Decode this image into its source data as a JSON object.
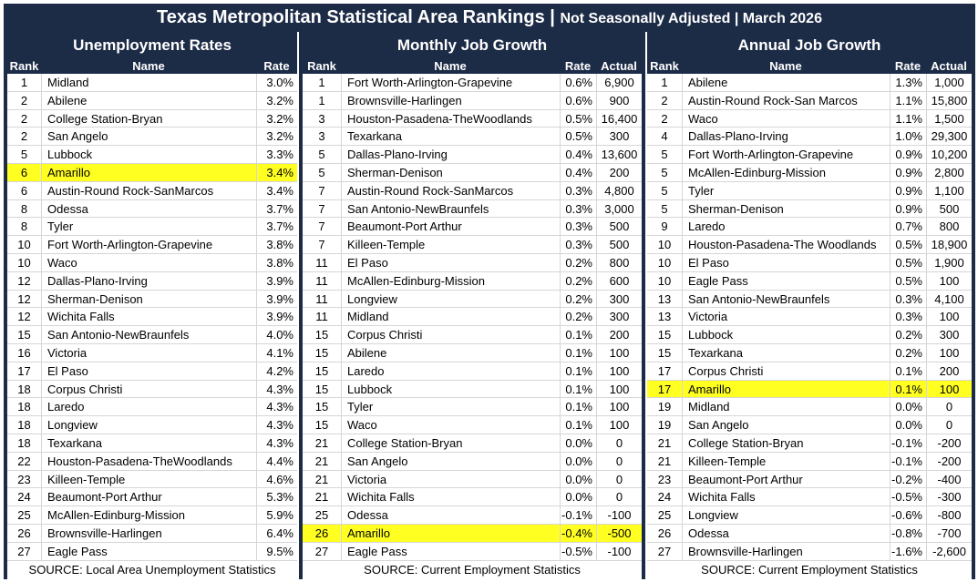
{
  "title": {
    "main": "Texas Metropolitan Statistical Area Rankings",
    "separator": " | ",
    "sub": "Not Seasonally Adjusted | March 2026"
  },
  "highlight_color": "#ffff22",
  "header_color": "#1c2b46",
  "sections": {
    "unemployment": {
      "title": "Unemployment Rates",
      "headers": {
        "rank": "Rank",
        "name": "Name",
        "rate": "Rate"
      },
      "source": "SOURCE: Local Area Unemployment Statistics",
      "rows": [
        {
          "rank": "1",
          "name": "Midland",
          "rate": "3.0%"
        },
        {
          "rank": "2",
          "name": "Abilene",
          "rate": "3.2%"
        },
        {
          "rank": "2",
          "name": "College Station-Bryan",
          "rate": "3.2%"
        },
        {
          "rank": "2",
          "name": "San Angelo",
          "rate": "3.2%"
        },
        {
          "rank": "5",
          "name": "Lubbock",
          "rate": "3.3%"
        },
        {
          "rank": "6",
          "name": "Amarillo",
          "rate": "3.4%",
          "highlight": true
        },
        {
          "rank": "6",
          "name": "Austin-Round Rock-SanMarcos",
          "rate": "3.4%"
        },
        {
          "rank": "8",
          "name": "Odessa",
          "rate": "3.7%"
        },
        {
          "rank": "8",
          "name": "Tyler",
          "rate": "3.7%"
        },
        {
          "rank": "10",
          "name": "Fort Worth-Arlington-Grapevine",
          "rate": "3.8%"
        },
        {
          "rank": "10",
          "name": "Waco",
          "rate": "3.8%"
        },
        {
          "rank": "12",
          "name": "Dallas-Plano-Irving",
          "rate": "3.9%"
        },
        {
          "rank": "12",
          "name": "Sherman-Denison",
          "rate": "3.9%"
        },
        {
          "rank": "12",
          "name": "Wichita Falls",
          "rate": "3.9%"
        },
        {
          "rank": "15",
          "name": "San Antonio-NewBraunfels",
          "rate": "4.0%"
        },
        {
          "rank": "16",
          "name": "Victoria",
          "rate": "4.1%"
        },
        {
          "rank": "17",
          "name": "El Paso",
          "rate": "4.2%"
        },
        {
          "rank": "18",
          "name": "Corpus Christi",
          "rate": "4.3%"
        },
        {
          "rank": "18",
          "name": "Laredo",
          "rate": "4.3%"
        },
        {
          "rank": "18",
          "name": "Longview",
          "rate": "4.3%"
        },
        {
          "rank": "18",
          "name": "Texarkana",
          "rate": "4.3%"
        },
        {
          "rank": "22",
          "name": "Houston-Pasadena-TheWoodlands",
          "rate": "4.4%"
        },
        {
          "rank": "23",
          "name": "Killeen-Temple",
          "rate": "4.6%"
        },
        {
          "rank": "24",
          "name": "Beaumont-Port Arthur",
          "rate": "5.3%"
        },
        {
          "rank": "25",
          "name": "McAllen-Edinburg-Mission",
          "rate": "5.9%"
        },
        {
          "rank": "26",
          "name": "Brownsville-Harlingen",
          "rate": "6.4%"
        },
        {
          "rank": "27",
          "name": "Eagle Pass",
          "rate": "9.5%"
        }
      ]
    },
    "monthly": {
      "title": "Monthly Job Growth",
      "headers": {
        "rank": "Rank",
        "name": "Name",
        "rate": "Rate",
        "actual": "Actual"
      },
      "source": "SOURCE: Current Employment Statistics",
      "rows": [
        {
          "rank": "1",
          "name": "Fort Worth-Arlington-Grapevine",
          "rate": "0.6%",
          "actual": "6,900"
        },
        {
          "rank": "1",
          "name": "Brownsville-Harlingen",
          "rate": "0.6%",
          "actual": "900"
        },
        {
          "rank": "3",
          "name": "Houston-Pasadena-TheWoodlands",
          "rate": "0.5%",
          "actual": "16,400"
        },
        {
          "rank": "3",
          "name": "Texarkana",
          "rate": "0.5%",
          "actual": "300"
        },
        {
          "rank": "5",
          "name": "Dallas-Plano-Irving",
          "rate": "0.4%",
          "actual": "13,600"
        },
        {
          "rank": "5",
          "name": "Sherman-Denison",
          "rate": "0.4%",
          "actual": "200"
        },
        {
          "rank": "7",
          "name": "Austin-Round Rock-SanMarcos",
          "rate": "0.3%",
          "actual": "4,800"
        },
        {
          "rank": "7",
          "name": "San Antonio-NewBraunfels",
          "rate": "0.3%",
          "actual": "3,000"
        },
        {
          "rank": "7",
          "name": "Beaumont-Port Arthur",
          "rate": "0.3%",
          "actual": "500"
        },
        {
          "rank": "7",
          "name": "Killeen-Temple",
          "rate": "0.3%",
          "actual": "500"
        },
        {
          "rank": "11",
          "name": "El Paso",
          "rate": "0.2%",
          "actual": "800"
        },
        {
          "rank": "11",
          "name": "McAllen-Edinburg-Mission",
          "rate": "0.2%",
          "actual": "600"
        },
        {
          "rank": "11",
          "name": "Longview",
          "rate": "0.2%",
          "actual": "300"
        },
        {
          "rank": "11",
          "name": "Midland",
          "rate": "0.2%",
          "actual": "300"
        },
        {
          "rank": "15",
          "name": "Corpus Christi",
          "rate": "0.1%",
          "actual": "200"
        },
        {
          "rank": "15",
          "name": "Abilene",
          "rate": "0.1%",
          "actual": "100"
        },
        {
          "rank": "15",
          "name": "Laredo",
          "rate": "0.1%",
          "actual": "100"
        },
        {
          "rank": "15",
          "name": "Lubbock",
          "rate": "0.1%",
          "actual": "100"
        },
        {
          "rank": "15",
          "name": "Tyler",
          "rate": "0.1%",
          "actual": "100"
        },
        {
          "rank": "15",
          "name": "Waco",
          "rate": "0.1%",
          "actual": "100"
        },
        {
          "rank": "21",
          "name": "College Station-Bryan",
          "rate": "0.0%",
          "actual": "0"
        },
        {
          "rank": "21",
          "name": "San Angelo",
          "rate": "0.0%",
          "actual": "0"
        },
        {
          "rank": "21",
          "name": "Victoria",
          "rate": "0.0%",
          "actual": "0"
        },
        {
          "rank": "21",
          "name": "Wichita Falls",
          "rate": "0.0%",
          "actual": "0"
        },
        {
          "rank": "25",
          "name": "Odessa",
          "rate": "-0.1%",
          "actual": "-100"
        },
        {
          "rank": "26",
          "name": "Amarillo",
          "rate": "-0.4%",
          "actual": "-500",
          "highlight": true
        },
        {
          "rank": "27",
          "name": "Eagle Pass",
          "rate": "-0.5%",
          "actual": "-100"
        }
      ]
    },
    "annual": {
      "title": "Annual Job Growth",
      "headers": {
        "rank": "Rank",
        "name": "Name",
        "rate": "Rate",
        "actual": "Actual"
      },
      "source": "SOURCE: Current Employment Statistics",
      "rows": [
        {
          "rank": "1",
          "name": "Abilene",
          "rate": "1.3%",
          "actual": "1,000"
        },
        {
          "rank": "2",
          "name": "Austin-Round Rock-San Marcos",
          "rate": "1.1%",
          "actual": "15,800"
        },
        {
          "rank": "2",
          "name": "Waco",
          "rate": "1.1%",
          "actual": "1,500"
        },
        {
          "rank": "4",
          "name": "Dallas-Plano-Irving",
          "rate": "1.0%",
          "actual": "29,300"
        },
        {
          "rank": "5",
          "name": "Fort Worth-Arlington-Grapevine",
          "rate": "0.9%",
          "actual": "10,200"
        },
        {
          "rank": "5",
          "name": "McAllen-Edinburg-Mission",
          "rate": "0.9%",
          "actual": "2,800"
        },
        {
          "rank": "5",
          "name": "Tyler",
          "rate": "0.9%",
          "actual": "1,100"
        },
        {
          "rank": "5",
          "name": "Sherman-Denison",
          "rate": "0.9%",
          "actual": "500"
        },
        {
          "rank": "9",
          "name": "Laredo",
          "rate": "0.7%",
          "actual": "800"
        },
        {
          "rank": "10",
          "name": "Houston-Pasadena-The Woodlands",
          "rate": "0.5%",
          "actual": "18,900"
        },
        {
          "rank": "10",
          "name": "El Paso",
          "rate": "0.5%",
          "actual": "1,900"
        },
        {
          "rank": "10",
          "name": "Eagle Pass",
          "rate": "0.5%",
          "actual": "100"
        },
        {
          "rank": "13",
          "name": "San Antonio-NewBraunfels",
          "rate": "0.3%",
          "actual": "4,100"
        },
        {
          "rank": "13",
          "name": "Victoria",
          "rate": "0.3%",
          "actual": "100"
        },
        {
          "rank": "15",
          "name": "Lubbock",
          "rate": "0.2%",
          "actual": "300"
        },
        {
          "rank": "15",
          "name": "Texarkana",
          "rate": "0.2%",
          "actual": "100"
        },
        {
          "rank": "17",
          "name": "Corpus Christi",
          "rate": "0.1%",
          "actual": "200"
        },
        {
          "rank": "17",
          "name": "Amarillo",
          "rate": "0.1%",
          "actual": "100",
          "highlight": true
        },
        {
          "rank": "19",
          "name": "Midland",
          "rate": "0.0%",
          "actual": "0"
        },
        {
          "rank": "19",
          "name": "San Angelo",
          "rate": "0.0%",
          "actual": "0"
        },
        {
          "rank": "21",
          "name": "College Station-Bryan",
          "rate": "-0.1%",
          "actual": "-200"
        },
        {
          "rank": "21",
          "name": "Killeen-Temple",
          "rate": "-0.1%",
          "actual": "-200"
        },
        {
          "rank": "23",
          "name": "Beaumont-Port Arthur",
          "rate": "-0.2%",
          "actual": "-400"
        },
        {
          "rank": "24",
          "name": "Wichita Falls",
          "rate": "-0.5%",
          "actual": "-300"
        },
        {
          "rank": "25",
          "name": "Longview",
          "rate": "-0.6%",
          "actual": "-800"
        },
        {
          "rank": "26",
          "name": "Odessa",
          "rate": "-0.8%",
          "actual": "-700"
        },
        {
          "rank": "27",
          "name": "Brownsville-Harlingen",
          "rate": "-1.6%",
          "actual": "-2,600"
        }
      ]
    }
  }
}
